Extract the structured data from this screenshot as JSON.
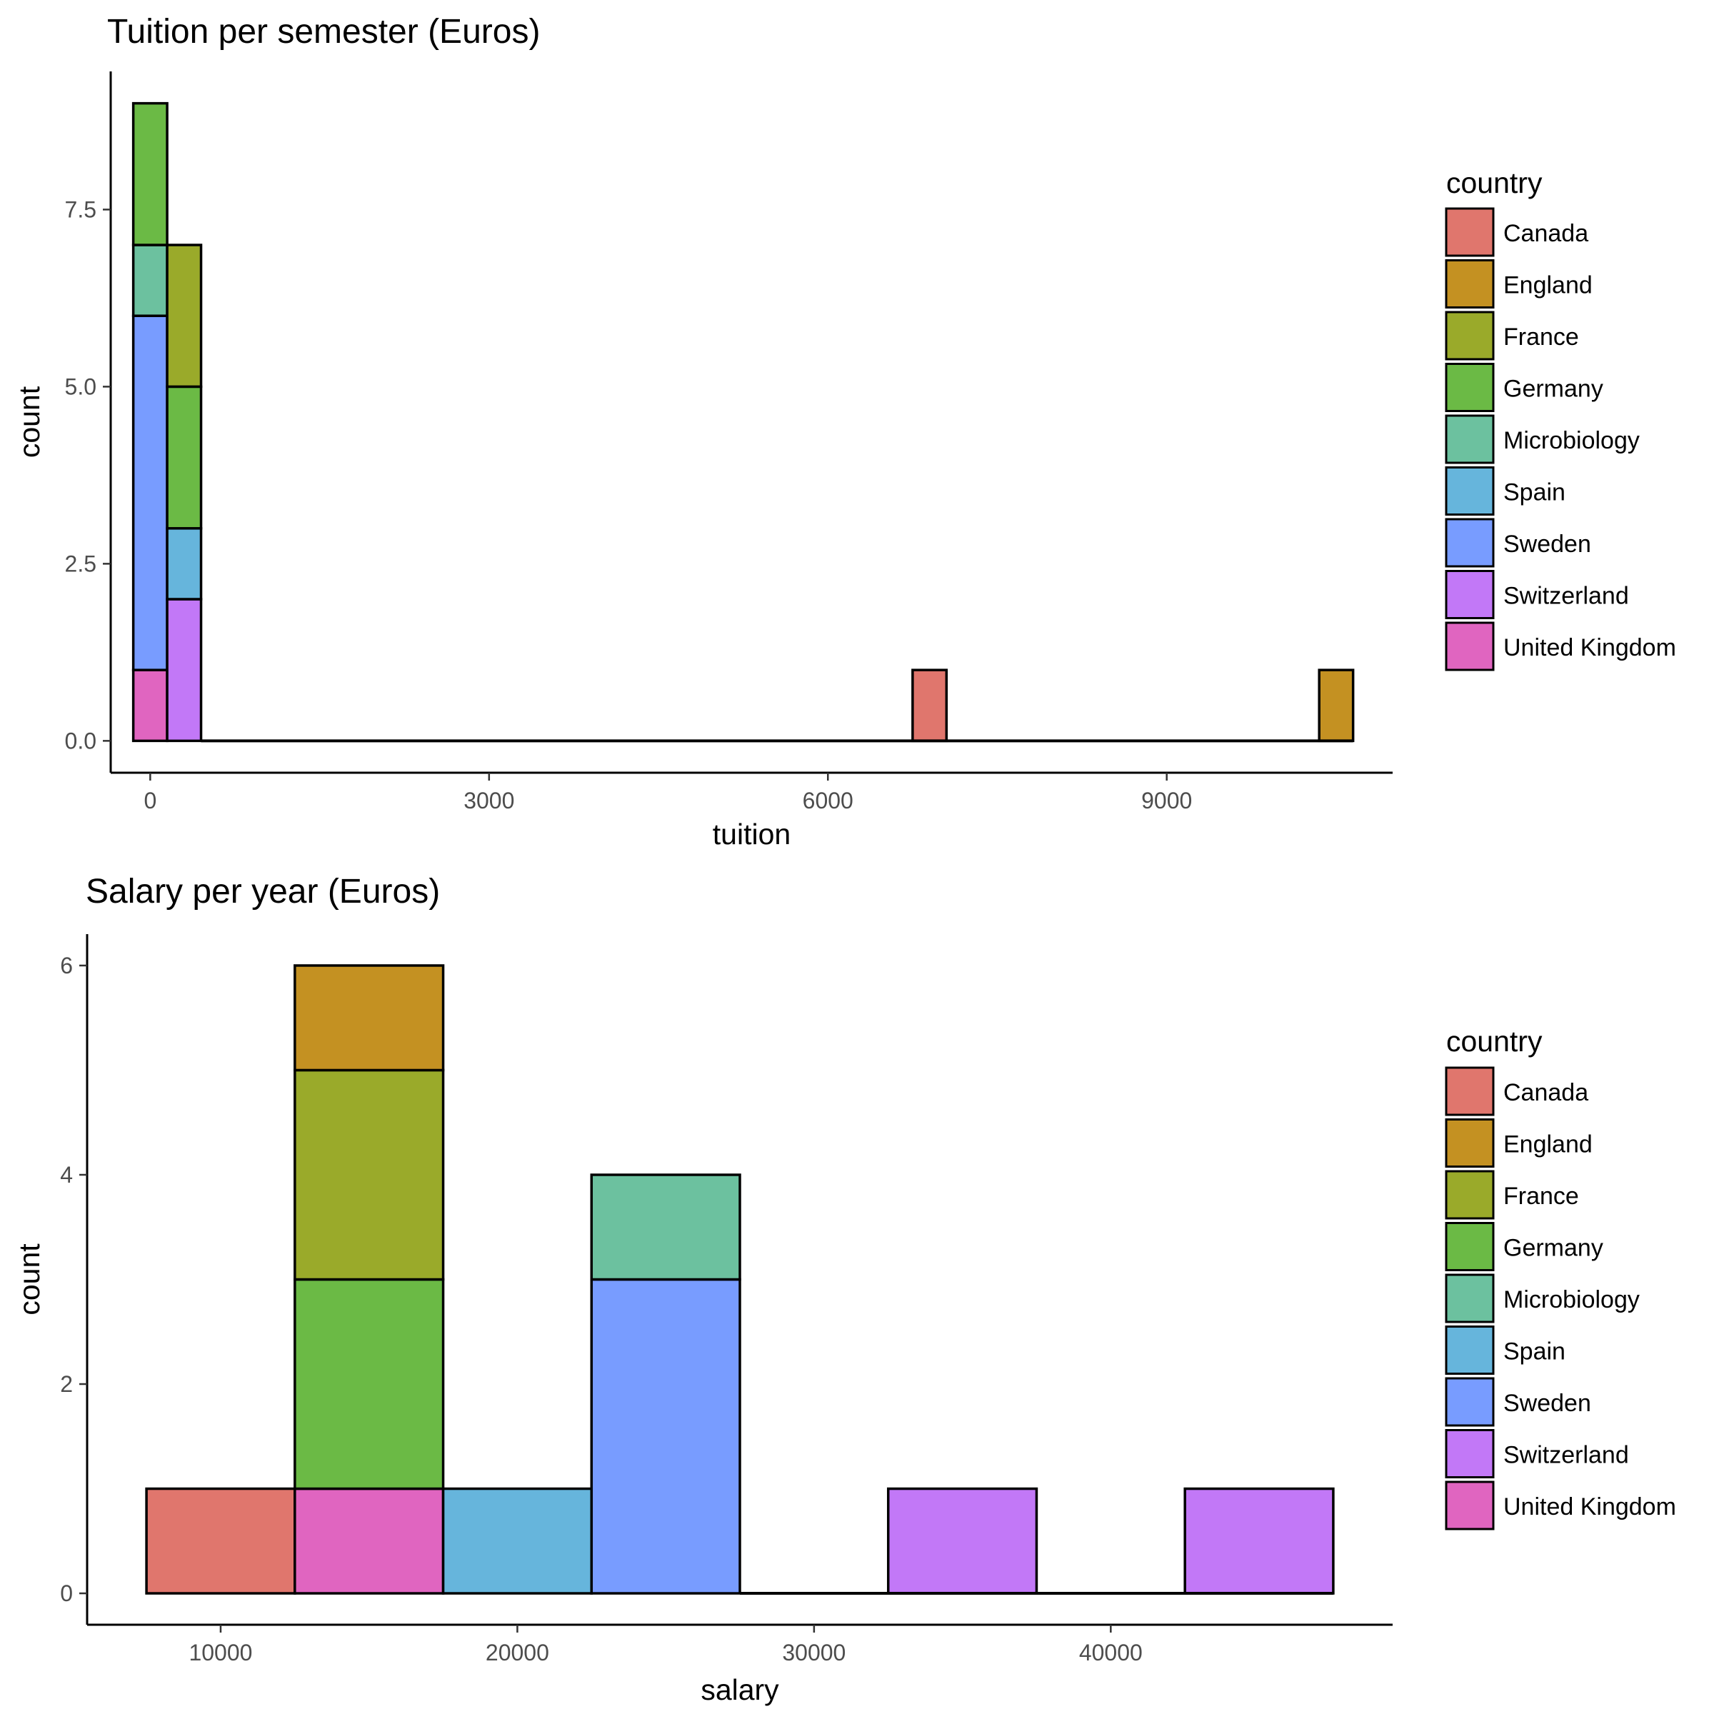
{
  "chart_data": [
    {
      "type": "bar",
      "stacked": true,
      "histogram": true,
      "title": "Tuition per semester (Euros)",
      "xlabel": "tuition",
      "ylabel": "count",
      "xlim": [
        -350,
        11000
      ],
      "ylim": [
        -0.45,
        9.45
      ],
      "xticks": [
        0,
        3000,
        6000,
        9000
      ],
      "xtick_labels": [
        "0",
        "3000",
        "6000",
        "9000"
      ],
      "yticks": [
        0,
        2.5,
        5,
        7.5
      ],
      "ytick_labels": [
        "0.0",
        "2.5",
        "5.0",
        "7.5"
      ],
      "grid": false,
      "legend_title": "country",
      "legend_position": "right",
      "bins": [
        {
          "x0": -150,
          "x1": 150,
          "stack": [
            {
              "country": "United Kingdom",
              "count": 1
            },
            {
              "country": "Sweden",
              "count": 5
            },
            {
              "country": "Microbiology",
              "count": 1
            },
            {
              "country": "Germany",
              "count": 2
            }
          ]
        },
        {
          "x0": 150,
          "x1": 450,
          "stack": [
            {
              "country": "Switzerland",
              "count": 2
            },
            {
              "country": "Spain",
              "count": 1
            },
            {
              "country": "Germany",
              "count": 2
            },
            {
              "country": "France",
              "count": 2
            }
          ]
        },
        {
          "x0": 6750,
          "x1": 7050,
          "stack": [
            {
              "country": "Canada",
              "count": 1
            }
          ]
        },
        {
          "x0": 10350,
          "x1": 10650,
          "stack": [
            {
              "country": "England",
              "count": 1
            }
          ]
        }
      ],
      "zero_range": [
        450,
        10650
      ]
    },
    {
      "type": "bar",
      "stacked": true,
      "histogram": true,
      "title": "Salary per year (Euros)",
      "xlabel": "salary",
      "ylabel": "count",
      "xlim": [
        5500,
        49500
      ],
      "ylim": [
        -0.3,
        6.3
      ],
      "xticks": [
        10000,
        20000,
        30000,
        40000
      ],
      "xtick_labels": [
        "10000",
        "20000",
        "30000",
        "40000"
      ],
      "yticks": [
        0,
        2,
        4,
        6
      ],
      "ytick_labels": [
        "0",
        "2",
        "4",
        "6"
      ],
      "grid": false,
      "legend_title": "country",
      "legend_position": "right",
      "bins": [
        {
          "x0": 7500,
          "x1": 12500,
          "stack": [
            {
              "country": "Canada",
              "count": 1
            }
          ]
        },
        {
          "x0": 12500,
          "x1": 17500,
          "stack": [
            {
              "country": "United Kingdom",
              "count": 1
            },
            {
              "country": "Germany",
              "count": 2
            },
            {
              "country": "France",
              "count": 2
            },
            {
              "country": "England",
              "count": 1
            }
          ]
        },
        {
          "x0": 17500,
          "x1": 22500,
          "stack": [
            {
              "country": "Spain",
              "count": 1
            }
          ]
        },
        {
          "x0": 22500,
          "x1": 27500,
          "stack": [
            {
              "country": "Sweden",
              "count": 3
            },
            {
              "country": "Microbiology",
              "count": 1
            }
          ]
        },
        {
          "x0": 32500,
          "x1": 37500,
          "stack": [
            {
              "country": "Switzerland",
              "count": 1
            }
          ]
        },
        {
          "x0": 42500,
          "x1": 47500,
          "stack": [
            {
              "country": "Switzerland",
              "count": 1
            }
          ]
        }
      ],
      "zero_range": [
        27500,
        47500
      ]
    }
  ],
  "countries": [
    "Canada",
    "England",
    "France",
    "Germany",
    "Microbiology",
    "Spain",
    "Sweden",
    "Switzerland",
    "United Kingdom"
  ],
  "colors": {
    "Canada": "#E0766D",
    "England": "#C49122",
    "France": "#9AAA2A",
    "Germany": "#6BBA45",
    "Microbiology": "#6CC19F",
    "Spain": "#66B5DC",
    "Sweden": "#789CFF",
    "Switzerland": "#C278F7",
    "United Kingdom": "#E065C0"
  }
}
